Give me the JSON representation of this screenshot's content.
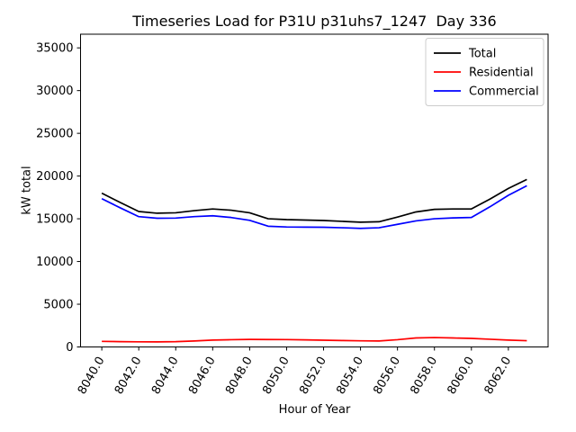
{
  "chart_data": {
    "type": "line",
    "title": "Timeseries Load for P31U p31uhs7_1247  Day 336",
    "xlabel": "Hour of Year",
    "ylabel": "kW total",
    "x": [
      8040,
      8041,
      8042,
      8043,
      8044,
      8045,
      8046,
      8047,
      8048,
      8049,
      8050,
      8051,
      8052,
      8053,
      8054,
      8055,
      8056,
      8057,
      8058,
      8059,
      8060,
      8061,
      8062,
      8063
    ],
    "series": [
      {
        "name": "Total",
        "color": "#000000",
        "values": [
          18000,
          16900,
          15850,
          15650,
          15700,
          15950,
          16150,
          16000,
          15700,
          15000,
          14900,
          14850,
          14800,
          14700,
          14600,
          14650,
          15200,
          15800,
          16100,
          16150,
          16150,
          17300,
          18550,
          19600
        ]
      },
      {
        "name": "Residential",
        "color": "#ff0000",
        "values": [
          650,
          620,
          600,
          590,
          620,
          700,
          800,
          850,
          880,
          870,
          860,
          830,
          790,
          750,
          720,
          700,
          850,
          1050,
          1100,
          1050,
          1000,
          900,
          800,
          730
        ]
      },
      {
        "name": "Commercial",
        "color": "#0000ff",
        "values": [
          17350,
          16280,
          15250,
          15060,
          15080,
          15250,
          15350,
          15150,
          14820,
          14130,
          14040,
          14020,
          14010,
          13950,
          13880,
          13950,
          14350,
          14750,
          15000,
          15100,
          15150,
          16400,
          17750,
          18870
        ]
      }
    ],
    "xticks": [
      8040,
      8042,
      8044,
      8046,
      8048,
      8050,
      8052,
      8054,
      8056,
      8058,
      8060,
      8062
    ],
    "xtick_labels": [
      "8040.0",
      "8042.0",
      "8044.0",
      "8046.0",
      "8048.0",
      "8050.0",
      "8052.0",
      "8054.0",
      "8056.0",
      "8058.0",
      "8060.0",
      "8062.0"
    ],
    "yticks": [
      0,
      5000,
      10000,
      15000,
      20000,
      25000,
      30000,
      35000
    ],
    "ytick_labels": [
      "0",
      "5000",
      "10000",
      "15000",
      "20000",
      "25000",
      "30000",
      "35000"
    ],
    "xlim": [
      8038.85,
      8064.15
    ],
    "ylim": [
      0,
      36600
    ],
    "xtick_rotation_deg": 60,
    "grid": false,
    "legend": {
      "position": "upper right",
      "entries": [
        "Total",
        "Residential",
        "Commercial"
      ]
    }
  }
}
